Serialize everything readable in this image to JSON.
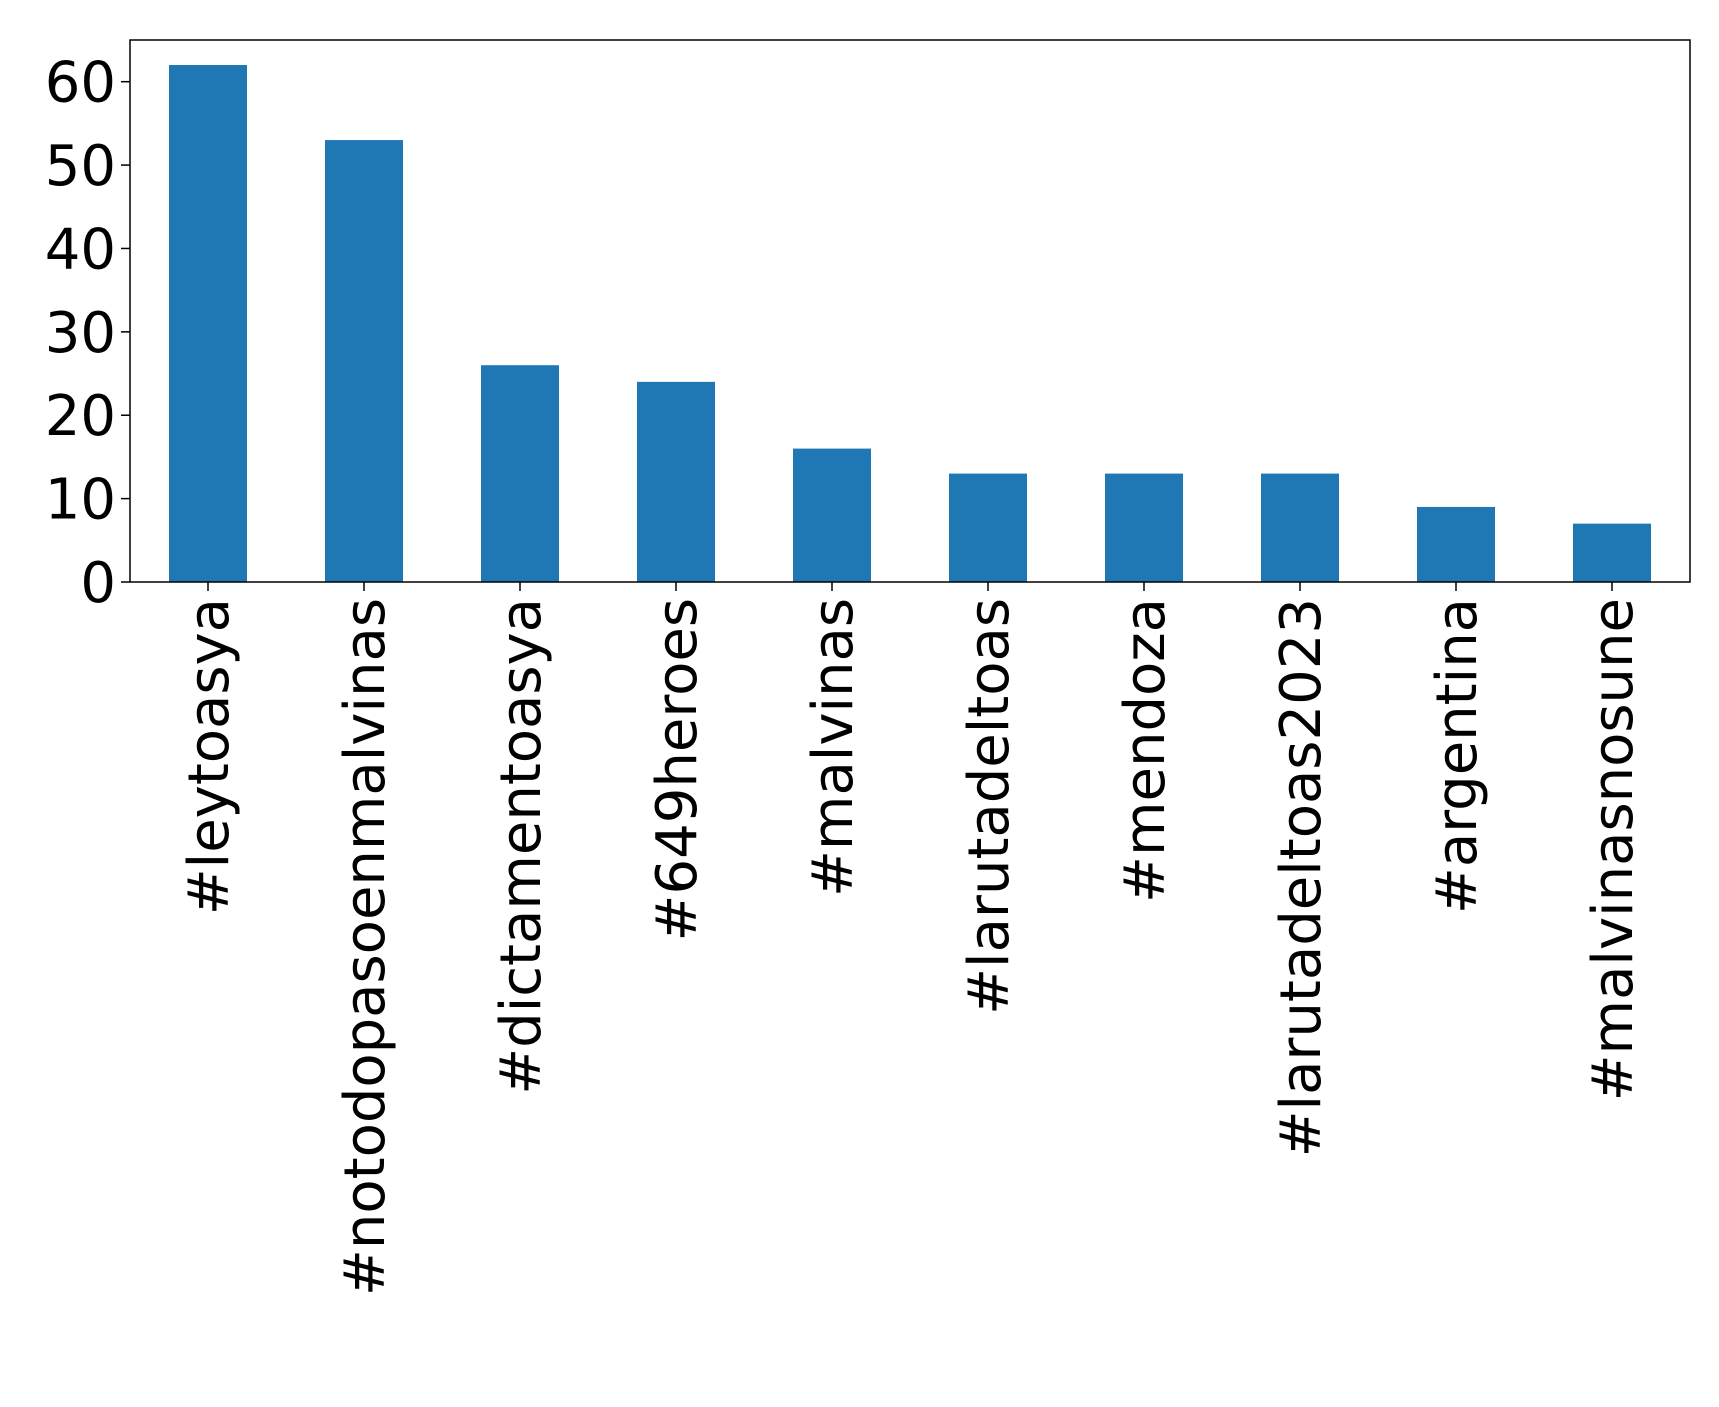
{
  "chart_data": {
    "type": "bar",
    "title": "",
    "xlabel": "",
    "ylabel": "",
    "categories": [
      "#leytoasya",
      "#notodopasoenmalvinas",
      "#dictamentoasya",
      "#649heroes",
      "#malvinas",
      "#larutadeltoas",
      "#mendoza",
      "#larutadeltoas2023",
      "#argentina",
      "#malvinasnosune"
    ],
    "values": [
      62,
      53,
      26,
      24,
      16,
      13,
      13,
      13,
      9,
      7
    ],
    "ylim": [
      0,
      65
    ],
    "yticks": [
      0,
      10,
      20,
      30,
      40,
      50,
      60
    ],
    "grid": false,
    "bar_color": "#1f77b4"
  }
}
